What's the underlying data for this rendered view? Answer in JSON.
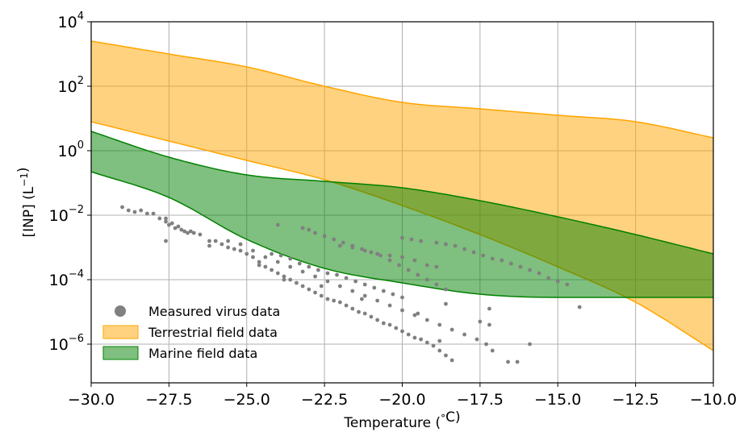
{
  "chart_data": {
    "type": "area",
    "xlabel": "Temperature ($^\\circ$C)",
    "ylabel": "[INP] (L$^{-1}$)",
    "xlim": [
      -30.0,
      -10.0
    ],
    "ylim_exponent": [
      -7.2,
      4.0
    ],
    "yscale": "log",
    "grid": true,
    "legend_position": "lower-left",
    "x_ticks": [
      {
        "value": -30.0,
        "label": "−30.0"
      },
      {
        "value": -27.5,
        "label": "−27.5"
      },
      {
        "value": -25.0,
        "label": "−25.0"
      },
      {
        "value": -22.5,
        "label": "−22.5"
      },
      {
        "value": -20.0,
        "label": "−20.0"
      },
      {
        "value": -17.5,
        "label": "−17.5"
      },
      {
        "value": -15.0,
        "label": "−15.0"
      },
      {
        "value": -12.5,
        "label": "−12.5"
      },
      {
        "value": -10.0,
        "label": "−10.0"
      }
    ],
    "y_ticks": [
      {
        "exp": 4,
        "base": "10",
        "power": "4"
      },
      {
        "exp": 2,
        "base": "10",
        "power": "2"
      },
      {
        "exp": 0,
        "base": "10",
        "power": "0"
      },
      {
        "exp": -2,
        "base": "10",
        "power": "−2"
      },
      {
        "exp": -4,
        "base": "10",
        "power": "−4"
      },
      {
        "exp": -6,
        "base": "10",
        "power": "−6"
      }
    ],
    "series": [
      {
        "name": "Terrestrial field data",
        "kind": "band",
        "fill": "#ffa500",
        "fill_opacity": 0.5,
        "edge": "#ffa500",
        "x": [
          -30,
          -27.5,
          -25,
          -22.5,
          -20,
          -17.5,
          -15,
          -12.5,
          -10
        ],
        "upper_exp": [
          3.4,
          3.0,
          2.6,
          2.0,
          1.5,
          1.3,
          1.1,
          0.9,
          0.4
        ],
        "lower_exp": [
          0.9,
          0.3,
          -0.3,
          -0.9,
          -1.7,
          -2.6,
          -3.6,
          -4.7,
          -6.2
        ]
      },
      {
        "name": "Marine field data",
        "kind": "band",
        "fill": "#008000",
        "fill_opacity": 0.5,
        "edge": "#008000",
        "x": [
          -30,
          -27.5,
          -25,
          -22.5,
          -20,
          -17.5,
          -15,
          -12.5,
          -10
        ],
        "upper_exp": [
          0.6,
          -0.2,
          -0.75,
          -0.95,
          -1.15,
          -1.55,
          -2.05,
          -2.6,
          -3.2
        ],
        "lower_exp": [
          -0.65,
          -1.45,
          -2.75,
          -3.65,
          -4.1,
          -4.45,
          -4.55,
          -4.55,
          -4.55
        ]
      },
      {
        "name": "Measured virus data",
        "kind": "scatter",
        "color": "#808080",
        "points": [
          [
            -29.0,
            -1.75
          ],
          [
            -28.8,
            -1.85
          ],
          [
            -28.6,
            -1.9
          ],
          [
            -28.4,
            -1.85
          ],
          [
            -28.2,
            -1.95
          ],
          [
            -28.0,
            -1.95
          ],
          [
            -27.8,
            -2.1
          ],
          [
            -27.6,
            -2.2
          ],
          [
            -27.5,
            -2.3
          ],
          [
            -27.3,
            -2.4
          ],
          [
            -27.2,
            -2.35
          ],
          [
            -27.0,
            -2.5
          ],
          [
            -26.9,
            -2.55
          ],
          [
            -26.7,
            -2.55
          ],
          [
            -26.5,
            -2.6
          ],
          [
            -27.6,
            -2.1
          ],
          [
            -27.4,
            -2.25
          ],
          [
            -27.1,
            -2.45
          ],
          [
            -26.8,
            -2.5
          ],
          [
            -27.6,
            -2.8
          ],
          [
            -26.2,
            -2.8
          ],
          [
            -26.0,
            -2.8
          ],
          [
            -25.8,
            -2.9
          ],
          [
            -25.6,
            -3.0
          ],
          [
            -25.4,
            -3.05
          ],
          [
            -25.2,
            -3.1
          ],
          [
            -25.0,
            -3.2
          ],
          [
            -24.8,
            -3.3
          ],
          [
            -24.6,
            -3.45
          ],
          [
            -24.4,
            -3.6
          ],
          [
            -24.2,
            -3.7
          ],
          [
            -24.0,
            -3.8
          ],
          [
            -23.8,
            -3.9
          ],
          [
            -23.6,
            -4.0
          ],
          [
            -23.4,
            -4.1
          ],
          [
            -23.2,
            -4.2
          ],
          [
            -23.0,
            -4.3
          ],
          [
            -22.8,
            -4.4
          ],
          [
            -22.6,
            -4.5
          ],
          [
            -22.4,
            -4.6
          ],
          [
            -22.2,
            -4.65
          ],
          [
            -22.0,
            -4.7
          ],
          [
            -21.8,
            -4.8
          ],
          [
            -21.6,
            -4.9
          ],
          [
            -21.4,
            -5.0
          ],
          [
            -21.2,
            -5.05
          ],
          [
            -21.0,
            -5.15
          ],
          [
            -20.8,
            -5.25
          ],
          [
            -20.6,
            -5.35
          ],
          [
            -20.4,
            -5.4
          ],
          [
            -20.2,
            -5.5
          ],
          [
            -20.0,
            -5.6
          ],
          [
            -19.8,
            -5.7
          ],
          [
            -19.6,
            -5.8
          ],
          [
            -19.4,
            -5.85
          ],
          [
            -19.2,
            -5.95
          ],
          [
            -19.0,
            -6.05
          ],
          [
            -18.8,
            -6.2
          ],
          [
            -18.6,
            -6.35
          ],
          [
            -18.4,
            -6.5
          ],
          [
            -25.6,
            -2.8
          ],
          [
            -25.2,
            -2.9
          ],
          [
            -24.8,
            -3.1
          ],
          [
            -24.4,
            -3.3
          ],
          [
            -24.0,
            -3.45
          ],
          [
            -23.6,
            -3.6
          ],
          [
            -23.2,
            -3.75
          ],
          [
            -22.8,
            -3.9
          ],
          [
            -22.4,
            -4.05
          ],
          [
            -22.0,
            -4.2
          ],
          [
            -21.6,
            -4.35
          ],
          [
            -21.2,
            -4.5
          ],
          [
            -20.8,
            -4.65
          ],
          [
            -20.4,
            -4.8
          ],
          [
            -20.0,
            -4.95
          ],
          [
            -19.6,
            -5.1
          ],
          [
            -19.2,
            -5.25
          ],
          [
            -18.8,
            -5.4
          ],
          [
            -18.4,
            -5.55
          ],
          [
            -18.0,
            -5.7
          ],
          [
            -17.6,
            -5.85
          ],
          [
            -17.3,
            -6.0
          ],
          [
            -17.1,
            -6.2
          ],
          [
            -24.2,
            -3.2
          ],
          [
            -23.9,
            -3.25
          ],
          [
            -23.6,
            -3.35
          ],
          [
            -23.3,
            -3.5
          ],
          [
            -23.0,
            -3.6
          ],
          [
            -22.7,
            -3.7
          ],
          [
            -22.4,
            -3.8
          ],
          [
            -22.1,
            -3.85
          ],
          [
            -21.8,
            -3.95
          ],
          [
            -21.5,
            -4.05
          ],
          [
            -21.2,
            -4.15
          ],
          [
            -20.9,
            -4.25
          ],
          [
            -20.6,
            -4.35
          ],
          [
            -20.3,
            -4.45
          ],
          [
            -20.0,
            -4.55
          ],
          [
            -24.0,
            -2.3
          ],
          [
            -23.2,
            -2.4
          ],
          [
            -23.0,
            -2.45
          ],
          [
            -22.8,
            -2.55
          ],
          [
            -22.5,
            -2.65
          ],
          [
            -22.2,
            -2.75
          ],
          [
            -21.9,
            -2.85
          ],
          [
            -21.6,
            -2.95
          ],
          [
            -21.3,
            -3.05
          ],
          [
            -21.0,
            -3.15
          ],
          [
            -20.7,
            -3.25
          ],
          [
            -20.4,
            -3.4
          ],
          [
            -20.1,
            -3.55
          ],
          [
            -19.8,
            -3.7
          ],
          [
            -19.5,
            -3.85
          ],
          [
            -19.2,
            -4.0
          ],
          [
            -18.9,
            -4.15
          ],
          [
            -18.6,
            -4.3
          ],
          [
            -22.0,
            -2.95
          ],
          [
            -21.6,
            -3.0
          ],
          [
            -21.2,
            -3.1
          ],
          [
            -20.8,
            -3.2
          ],
          [
            -20.4,
            -3.25
          ],
          [
            -20.0,
            -3.3
          ],
          [
            -19.6,
            -3.4
          ],
          [
            -19.2,
            -3.55
          ],
          [
            -18.9,
            -3.6
          ],
          [
            -20.0,
            -2.7
          ],
          [
            -19.7,
            -2.75
          ],
          [
            -19.4,
            -2.8
          ],
          [
            -18.9,
            -2.85
          ],
          [
            -18.6,
            -2.9
          ],
          [
            -18.3,
            -2.95
          ],
          [
            -18.0,
            -3.05
          ],
          [
            -17.7,
            -3.15
          ],
          [
            -17.4,
            -3.25
          ],
          [
            -17.1,
            -3.35
          ],
          [
            -16.8,
            -3.4
          ],
          [
            -16.5,
            -3.5
          ],
          [
            -16.2,
            -3.6
          ],
          [
            -15.9,
            -3.7
          ],
          [
            -15.6,
            -3.8
          ],
          [
            -15.3,
            -3.95
          ],
          [
            -15.0,
            -4.05
          ],
          [
            -14.7,
            -4.15
          ],
          [
            -17.5,
            -5.3
          ],
          [
            -17.2,
            -5.4
          ],
          [
            -16.6,
            -6.55
          ],
          [
            -16.3,
            -6.55
          ],
          [
            -15.9,
            -6.0
          ],
          [
            -17.2,
            -4.9
          ],
          [
            -14.3,
            -4.85
          ],
          [
            -18.6,
            -4.75
          ],
          [
            -18.8,
            -5.9
          ],
          [
            -19.5,
            -5.05
          ],
          [
            -21.3,
            -4.6
          ],
          [
            -22.6,
            -4.2
          ],
          [
            -23.8,
            -4.0
          ],
          [
            -24.6,
            -3.55
          ],
          [
            -26.2,
            -2.95
          ]
        ]
      }
    ],
    "legend": [
      {
        "label": "Measured virus data",
        "marker": "circle",
        "color": "#808080"
      },
      {
        "label": "Terrestrial field data",
        "marker": "patch",
        "color": "#ffa500"
      },
      {
        "label": "Marine field data",
        "marker": "patch",
        "color": "#008000"
      }
    ]
  }
}
